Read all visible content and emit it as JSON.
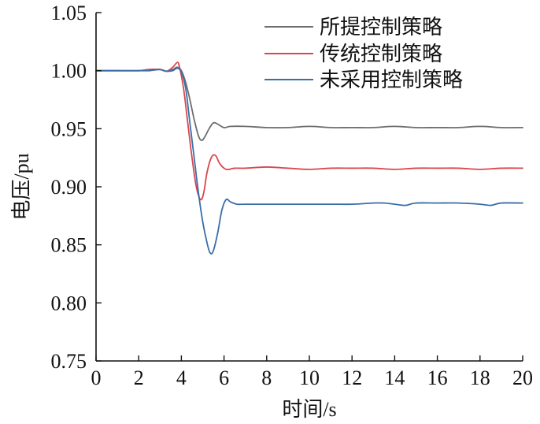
{
  "chart_data": {
    "type": "line",
    "xlabel": "时间/s",
    "ylabel": "电压/pu",
    "xlim": [
      0,
      20
    ],
    "ylim": [
      0.75,
      1.05
    ],
    "xticks": [
      0,
      2,
      4,
      6,
      8,
      10,
      12,
      14,
      16,
      18,
      20
    ],
    "yticks": [
      0.75,
      0.8,
      0.85,
      0.9,
      0.95,
      1.0,
      1.05
    ],
    "xtick_labels": [
      "0",
      "2",
      "4",
      "6",
      "8",
      "10",
      "12",
      "14",
      "16",
      "18",
      "20"
    ],
    "ytick_labels": [
      "0.75",
      "0.80",
      "0.85",
      "0.90",
      "0.95",
      "1.00",
      "1.05"
    ],
    "grid": false,
    "legend_position": "top-right",
    "series": [
      {
        "name": "所提控制策略",
        "color": "#6e6e6e",
        "x": [
          0,
          1,
          2,
          2.5,
          3,
          3.3,
          3.6,
          3.8,
          4.0,
          4.2,
          4.4,
          4.6,
          4.8,
          4.95,
          5.1,
          5.3,
          5.5,
          5.7,
          6.0,
          6.3,
          7,
          8,
          9,
          10,
          11,
          12,
          13,
          14,
          15,
          16,
          17,
          18,
          19,
          20
        ],
        "y": [
          1.0,
          1.0,
          1.0,
          1.001,
          1.001,
          0.9995,
          1.001,
          1.003,
          1.0,
          0.99,
          0.975,
          0.958,
          0.944,
          0.94,
          0.943,
          0.95,
          0.955,
          0.954,
          0.951,
          0.952,
          0.952,
          0.951,
          0.951,
          0.952,
          0.951,
          0.951,
          0.951,
          0.952,
          0.951,
          0.951,
          0.951,
          0.952,
          0.951,
          0.951
        ]
      },
      {
        "name": "传统控制策略",
        "color": "#d9464f",
        "x": [
          0,
          1,
          2,
          2.5,
          3,
          3.3,
          3.6,
          3.8,
          3.9,
          4.1,
          4.3,
          4.5,
          4.7,
          4.9,
          5.05,
          5.2,
          5.4,
          5.6,
          5.8,
          6.1,
          6.5,
          7,
          8,
          9,
          10,
          11,
          12,
          13,
          14,
          15,
          16,
          17,
          18,
          19,
          20
        ],
        "y": [
          1.0,
          1.0,
          1.0,
          1.001,
          1.001,
          0.9995,
          1.003,
          1.007,
          1.004,
          0.985,
          0.955,
          0.925,
          0.9,
          0.889,
          0.895,
          0.912,
          0.925,
          0.927,
          0.92,
          0.915,
          0.916,
          0.916,
          0.917,
          0.916,
          0.915,
          0.916,
          0.916,
          0.916,
          0.915,
          0.916,
          0.916,
          0.916,
          0.915,
          0.916,
          0.916
        ]
      },
      {
        "name": "未采用控制策略",
        "color": "#3a6ea8",
        "x": [
          0,
          1,
          2,
          2.5,
          3,
          3.3,
          3.6,
          3.8,
          4.0,
          4.2,
          4.4,
          4.6,
          4.8,
          5.0,
          5.2,
          5.35,
          5.5,
          5.7,
          5.9,
          6.1,
          6.3,
          6.6,
          7,
          8,
          9,
          10,
          11,
          12,
          13,
          13.5,
          14,
          14.5,
          15,
          16,
          17,
          18,
          18.5,
          19,
          20
        ],
        "y": [
          1.0,
          1.0,
          1.0,
          1.0,
          1.001,
          0.9995,
          1.0,
          1.002,
          0.999,
          0.985,
          0.955,
          0.925,
          0.895,
          0.87,
          0.852,
          0.843,
          0.845,
          0.86,
          0.88,
          0.889,
          0.887,
          0.885,
          0.885,
          0.885,
          0.885,
          0.885,
          0.885,
          0.885,
          0.886,
          0.886,
          0.885,
          0.884,
          0.886,
          0.886,
          0.886,
          0.885,
          0.884,
          0.886,
          0.886
        ]
      }
    ]
  }
}
